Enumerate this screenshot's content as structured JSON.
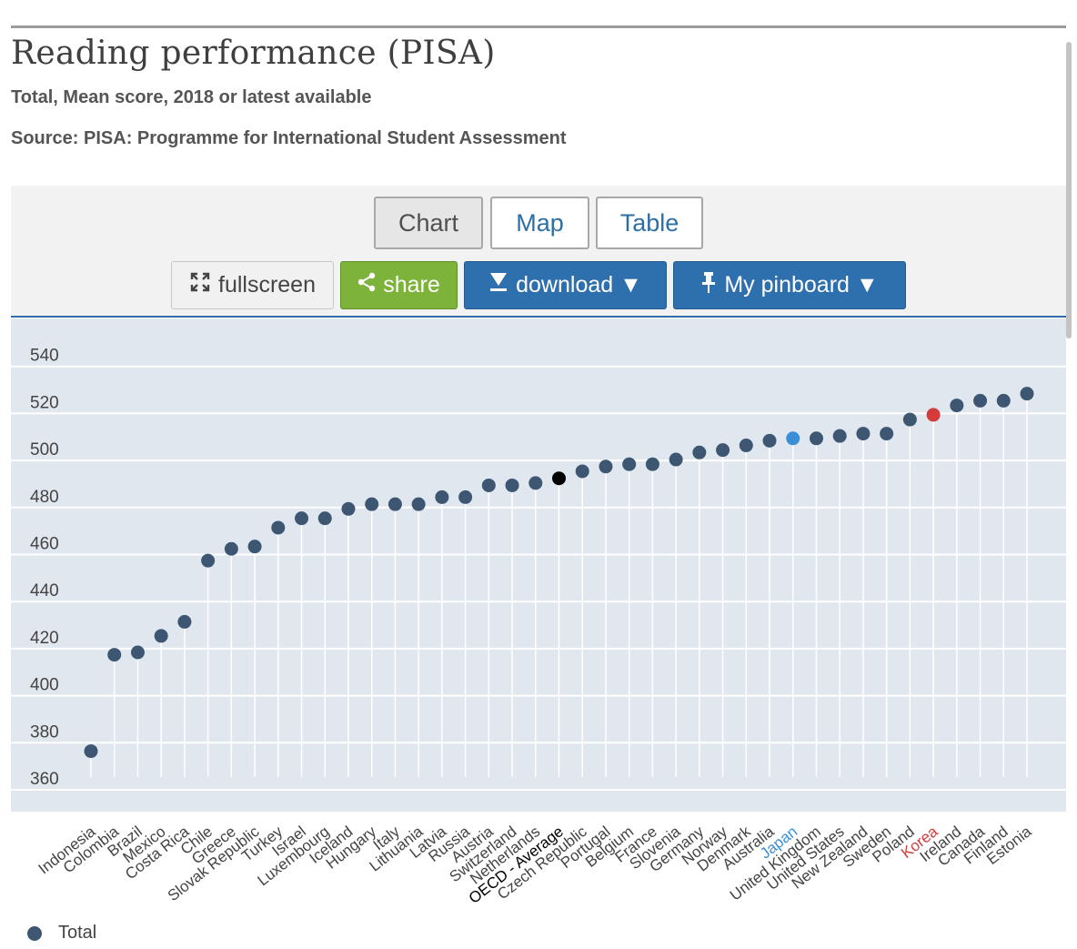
{
  "title": "Reading performance (PISA)",
  "subtitle": "Total, Mean score, 2018 or latest available",
  "source": "Source: PISA: Programme for International Student Assessment",
  "tabs": {
    "chart": "Chart",
    "map": "Map",
    "table": "Table"
  },
  "buttons": {
    "fullscreen": "fullscreen",
    "share": "share",
    "download": "download ▼",
    "pinboard": "My pinboard ▼"
  },
  "icons": {
    "fullscreen": "expand-arrows-icon",
    "share": "share-nodes-icon",
    "download": "download-arrow-icon",
    "pinboard": "pushpin-icon"
  },
  "legend": {
    "label": "Total"
  },
  "colors": {
    "default": "#3d5773",
    "oecd_average": "#000000",
    "japan": "#3a8fd6",
    "korea": "#d63b3b",
    "plot_bg": "#e1e7ef"
  },
  "chart_data": {
    "type": "scatter",
    "title": "Reading performance (PISA)",
    "xlabel": "",
    "ylabel": "",
    "ylim": [
      350,
      545
    ],
    "yticks": [
      360,
      380,
      400,
      420,
      440,
      460,
      480,
      500,
      520,
      540
    ],
    "grid": true,
    "series": [
      {
        "name": "Total"
      }
    ],
    "categories": [
      "Indonesia",
      "Colombia",
      "Brazil",
      "Mexico",
      "Costa Rica",
      "Chile",
      "Greece",
      "Slovak Republic",
      "Turkey",
      "Israel",
      "Luxembourg",
      "Iceland",
      "Hungary",
      "Italy",
      "Lithuania",
      "Latvia",
      "Russia",
      "Austria",
      "Switzerland",
      "Netherlands",
      "OECD - Average",
      "Czech Republic",
      "Portugal",
      "Belgium",
      "France",
      "Slovenia",
      "Germany",
      "Norway",
      "Denmark",
      "Australia",
      "Japan",
      "United Kingdom",
      "United States",
      "New Zealand",
      "Sweden",
      "Poland",
      "Korea",
      "Ireland",
      "Canada",
      "Finland",
      "Estonia"
    ],
    "values": [
      371,
      412,
      413,
      420,
      426,
      452,
      457,
      458,
      466,
      470,
      470,
      474,
      476,
      476,
      476,
      479,
      479,
      484,
      484,
      485,
      487,
      490,
      492,
      493,
      493,
      495,
      498,
      499,
      501,
      503,
      504,
      504,
      505,
      506,
      506,
      512,
      514,
      518,
      520,
      520,
      523
    ],
    "highlights": {
      "OECD - Average": "oecd_average",
      "Japan": "japan",
      "Korea": "korea"
    }
  }
}
